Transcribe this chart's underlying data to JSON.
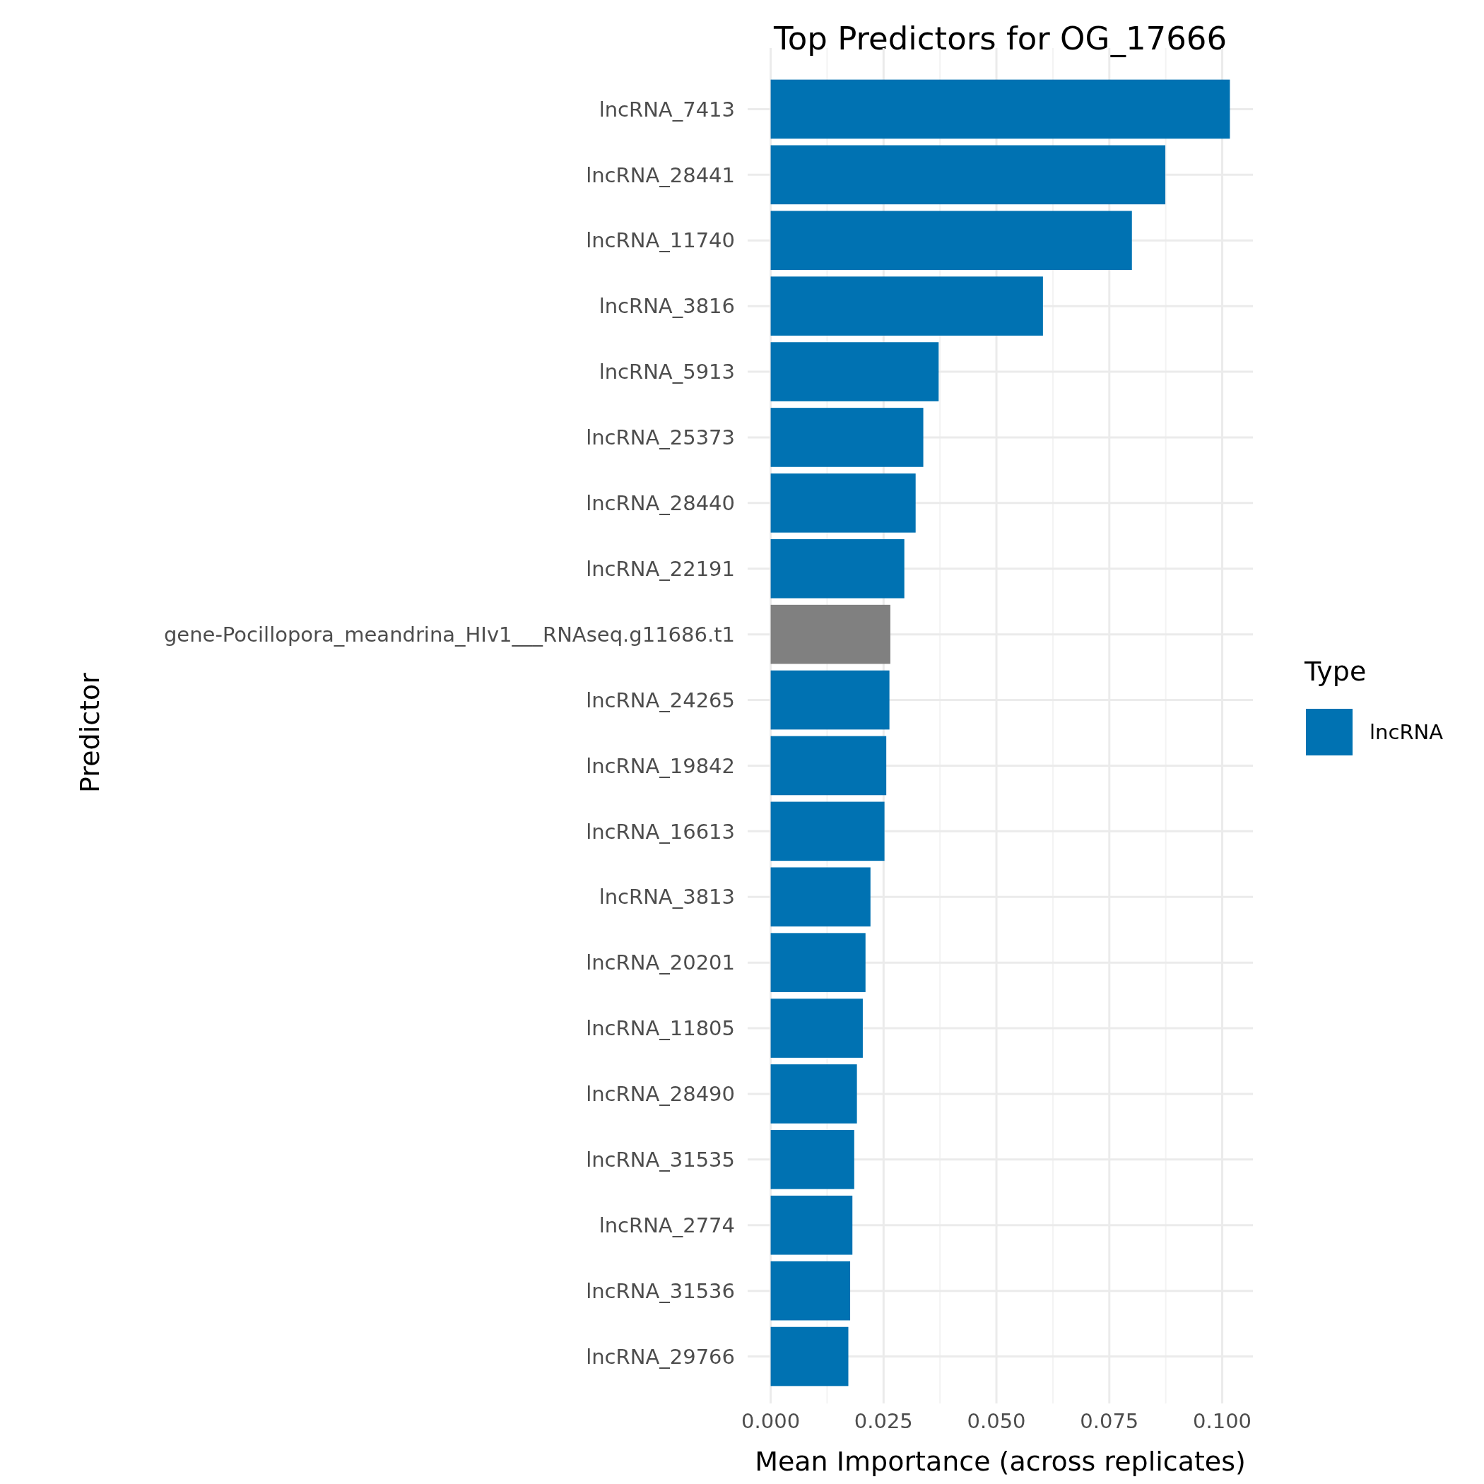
{
  "chart_data": {
    "type": "bar",
    "orientation": "horizontal",
    "title": "Top Predictors for OG_17666",
    "xlabel": "Mean Importance (across replicates)",
    "ylabel": "Predictor",
    "legend_title": "Type",
    "legend": "right",
    "grid": true,
    "categories": [
      "lncRNA_7413",
      "lncRNA_28441",
      "lncRNA_11740",
      "lncRNA_3816",
      "lncRNA_5913",
      "lncRNA_25373",
      "lncRNA_28440",
      "lncRNA_22191",
      "gene-Pocillopora_meandrina_HIv1___RNAseq.g11686.t1",
      "lncRNA_24265",
      "lncRNA_19842",
      "lncRNA_16613",
      "lncRNA_3813",
      "lncRNA_20201",
      "lncRNA_11805",
      "lncRNA_28490",
      "lncRNA_31535",
      "lncRNA_2774",
      "lncRNA_31536",
      "lncRNA_29766"
    ],
    "series": [
      {
        "name": "lncRNA",
        "color": "#0072b2",
        "colors": [
          "#0072b2",
          "#0072b2",
          "#0072b2",
          "#0072b2",
          "#0072b2",
          "#0072b2",
          "#0072b2",
          "#0072b2",
          "#808080",
          "#0072b2",
          "#0072b2",
          "#0072b2",
          "#0072b2",
          "#0072b2",
          "#0072b2",
          "#0072b2",
          "#0072b2",
          "#0072b2",
          "#0072b2",
          "#0072b2"
        ],
        "values": [
          0.1017,
          0.0874,
          0.08,
          0.0603,
          0.0372,
          0.0338,
          0.0321,
          0.0296,
          0.0265,
          0.0263,
          0.0256,
          0.0252,
          0.0221,
          0.021,
          0.0204,
          0.0191,
          0.0185,
          0.0181,
          0.0176,
          0.0172
        ]
      }
    ],
    "xlim": [
      -0.0051,
      0.1068
    ],
    "xticks": [
      {
        "value": 0,
        "label": "0.000"
      },
      {
        "value": 0.025,
        "label": "0.025"
      },
      {
        "value": 0.05,
        "label": "0.050"
      },
      {
        "value": 0.075,
        "label": "0.075"
      },
      {
        "value": 0.1,
        "label": "0.100"
      }
    ]
  }
}
